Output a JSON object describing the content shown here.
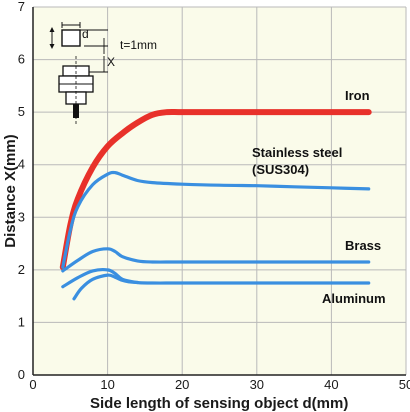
{
  "chart_data": {
    "type": "line",
    "xlabel": "Side length of sensing object d(mm)",
    "ylabel": "Distance X(mm)",
    "xlim": [
      0,
      50
    ],
    "ylim": [
      0,
      7
    ],
    "x_ticks": [
      "0",
      "10",
      "20",
      "30",
      "40",
      "50"
    ],
    "y_ticks": [
      "0",
      "1",
      "2",
      "3",
      "4",
      "5",
      "6",
      "7"
    ],
    "grid": true,
    "colors": {
      "plot_background": "#fafbea",
      "grid": "#b9b9b9",
      "axis": "#222222"
    },
    "series": [
      {
        "name": "Iron",
        "color": "#e8312a",
        "x": [
          4,
          5,
          6,
          8,
          10,
          12,
          14,
          16,
          18,
          20,
          25,
          30,
          35,
          40,
          45
        ],
        "y": [
          2.05,
          2.85,
          3.35,
          3.95,
          4.35,
          4.6,
          4.8,
          4.95,
          5.0,
          5.0,
          5.0,
          5.0,
          5.0,
          5.0,
          5.0
        ]
      },
      {
        "name": "Stainless steel\n(SUS304)",
        "color": "#3a8fe0",
        "x": [
          4,
          5,
          6,
          8,
          10,
          11,
          12,
          14,
          16,
          20,
          25,
          30,
          35,
          40,
          45
        ],
        "y": [
          2.05,
          2.75,
          3.2,
          3.62,
          3.82,
          3.85,
          3.8,
          3.7,
          3.66,
          3.63,
          3.61,
          3.6,
          3.58,
          3.56,
          3.54
        ]
      },
      {
        "name": "Brass",
        "color": "#3a8fe0",
        "x": [
          4,
          6,
          8,
          10,
          11,
          12,
          14,
          16,
          20,
          30,
          40,
          45
        ],
        "y": [
          1.98,
          2.18,
          2.35,
          2.4,
          2.35,
          2.25,
          2.17,
          2.15,
          2.15,
          2.15,
          2.15,
          2.15
        ]
      },
      {
        "name": "Aluminum",
        "color": "#3a8fe0",
        "x": [
          4,
          6,
          8,
          10,
          11,
          12,
          14,
          16,
          20,
          30,
          40,
          45
        ],
        "y": [
          1.68,
          1.85,
          1.98,
          2.0,
          1.93,
          1.82,
          1.76,
          1.75,
          1.75,
          1.75,
          1.75,
          1.75
        ]
      },
      {
        "name": "",
        "color": "#3a8fe0",
        "x": [
          5.5,
          6.5,
          8,
          10,
          11,
          12,
          13,
          14
        ],
        "y": [
          1.45,
          1.65,
          1.82,
          1.9,
          1.86,
          1.8,
          1.77,
          1.76
        ]
      }
    ],
    "inset": {
      "d_label": "d",
      "t_label": "t=1mm",
      "x_label": "X"
    }
  }
}
